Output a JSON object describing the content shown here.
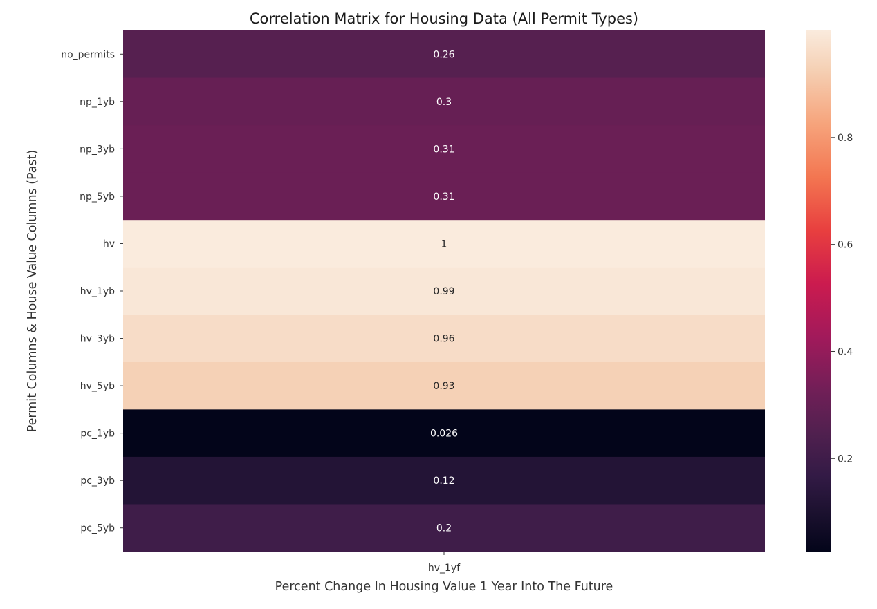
{
  "chart_data": {
    "type": "heatmap",
    "title": "Correlation Matrix for Housing Data (All Permit Types)",
    "xlabel": "Percent Change In Housing Value 1 Year Into The Future",
    "ylabel": "Permit Columns & House Value Columns (Past)",
    "columns": [
      "hv_1yf"
    ],
    "rows": [
      "no_permits",
      "np_1yb",
      "np_3yb",
      "np_5yb",
      "hv",
      "hv_1yb",
      "hv_3yb",
      "hv_5yb",
      "pc_1yb",
      "pc_3yb",
      "pc_5yb"
    ],
    "values": [
      [
        0.26
      ],
      [
        0.3
      ],
      [
        0.31
      ],
      [
        0.31
      ],
      [
        1
      ],
      [
        0.99
      ],
      [
        0.96
      ],
      [
        0.93
      ],
      [
        0.026
      ],
      [
        0.12
      ],
      [
        0.2
      ]
    ],
    "cell_labels": [
      "0.26",
      "0.3",
      "0.31",
      "0.31",
      "1",
      "0.99",
      "0.96",
      "0.93",
      "0.026",
      "0.12",
      "0.2"
    ],
    "colorbar": {
      "range": [
        0.026,
        1
      ],
      "ticks": [
        0.2,
        0.4,
        0.6,
        0.8
      ],
      "tick_labels": [
        "0.2",
        "0.4",
        "0.6",
        "0.8"
      ],
      "colormap": "rocket"
    },
    "grid": false,
    "colors": {
      "dark_text_on_light": "#262626",
      "light_text_on_dark": "#ffffff"
    }
  }
}
